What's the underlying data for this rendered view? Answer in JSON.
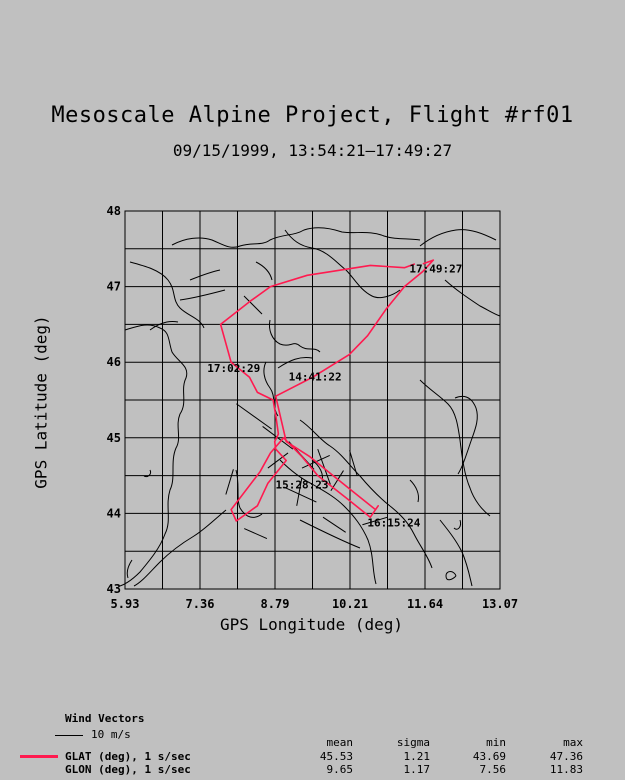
{
  "title": "Mesoscale Alpine Project, Flight #rf01",
  "subtitle": "09/15/1999, 13:54:21–17:49:27",
  "chart_data": {
    "type": "line",
    "xlabel": "GPS Longitude (deg)",
    "ylabel": "GPS Latitude (deg)",
    "xlim": [
      5.93,
      13.07
    ],
    "ylim": [
      43,
      48
    ],
    "xticks": [
      "5.93",
      "7.36",
      "8.79",
      "10.21",
      "11.64",
      "13.07"
    ],
    "yticks": [
      "43",
      "44",
      "45",
      "46",
      "47",
      "48"
    ],
    "grid": true,
    "track_color": "#ff1a4f",
    "series": [
      {
        "name": "GLAT (deg), 1 s/sec",
        "x": [
          11.45,
          11.25,
          10.6,
          9.4,
          8.7,
          8.3,
          7.75,
          7.95,
          8.3,
          8.45,
          8.75,
          8.8,
          8.85,
          8.78,
          8.8,
          9.0,
          8.65,
          8.45,
          8.05,
          7.95,
          8.5,
          8.7,
          8.95,
          9.3,
          9.6,
          10.15,
          10.6,
          10.75,
          10.7,
          10.25,
          9.8,
          9.45,
          9.0,
          8.8,
          9.5,
          10.2,
          10.55,
          10.9,
          11.25,
          11.6,
          11.8,
          11.6
        ],
        "y": [
          47.3,
          47.25,
          47.28,
          47.15,
          47.0,
          46.8,
          46.5,
          46.0,
          45.8,
          45.6,
          45.5,
          45.3,
          45.05,
          44.95,
          44.85,
          44.7,
          44.4,
          44.1,
          43.9,
          44.05,
          44.55,
          44.8,
          45.0,
          44.75,
          44.5,
          44.2,
          43.95,
          44.1,
          44.05,
          44.3,
          44.55,
          44.75,
          44.95,
          45.55,
          45.8,
          46.1,
          46.35,
          46.7,
          47.0,
          47.2,
          47.35,
          47.3
        ]
      }
    ],
    "time_labels": [
      {
        "text": "17:49:27",
        "x": 11.85,
        "y": 47.24
      },
      {
        "text": "17:02:29",
        "x": 8.0,
        "y": 45.92
      },
      {
        "text": "14:41:22",
        "x": 9.55,
        "y": 45.81
      },
      {
        "text": "15:28:23",
        "x": 9.3,
        "y": 44.38
      },
      {
        "text": "16:15:24",
        "x": 11.05,
        "y": 43.88
      }
    ],
    "wind_vectors": [
      {
        "x": 8.05,
        "y": 45.45,
        "u": 1.4,
        "v": -1.0
      },
      {
        "x": 8.55,
        "y": 45.15,
        "u": 1.2,
        "v": -0.9
      },
      {
        "x": 9.05,
        "y": 44.95,
        "u": 1.0,
        "v": -1.1
      },
      {
        "x": 9.6,
        "y": 44.85,
        "u": 0.5,
        "v": -1.4
      },
      {
        "x": 8.95,
        "y": 44.35,
        "u": 1.3,
        "v": -0.6
      },
      {
        "x": 9.2,
        "y": 44.1,
        "u": 0.2,
        "v": 1.1
      },
      {
        "x": 9.85,
        "y": 44.3,
        "u": 0.5,
        "v": 0.8
      },
      {
        "x": 10.35,
        "y": 44.5,
        "u": -0.3,
        "v": 1.0
      },
      {
        "x": 9.7,
        "y": 43.95,
        "u": 0.9,
        "v": -0.6
      },
      {
        "x": 10.45,
        "y": 43.85,
        "u": 1.0,
        "v": 0.3
      },
      {
        "x": 8.2,
        "y": 43.8,
        "u": 0.9,
        "v": -0.4
      },
      {
        "x": 7.85,
        "y": 44.25,
        "u": 0.3,
        "v": 1.0
      },
      {
        "x": 9.3,
        "y": 44.6,
        "u": 1.1,
        "v": 0.5
      },
      {
        "x": 8.65,
        "y": 44.6,
        "u": 0.8,
        "v": 0.6
      }
    ]
  },
  "legend": {
    "wind_title": "Wind Vectors",
    "wind_scale": "10 m/s",
    "stat_headers": [
      "mean",
      "sigma",
      "min",
      "max"
    ],
    "rows": [
      {
        "label": "GLAT (deg), 1 s/sec",
        "values": [
          "45.53",
          "1.21",
          "43.69",
          "47.36"
        ]
      },
      {
        "label": "GLON (deg), 1 s/sec",
        "values": [
          "9.65",
          "1.17",
          "7.56",
          "11.83"
        ]
      }
    ]
  }
}
